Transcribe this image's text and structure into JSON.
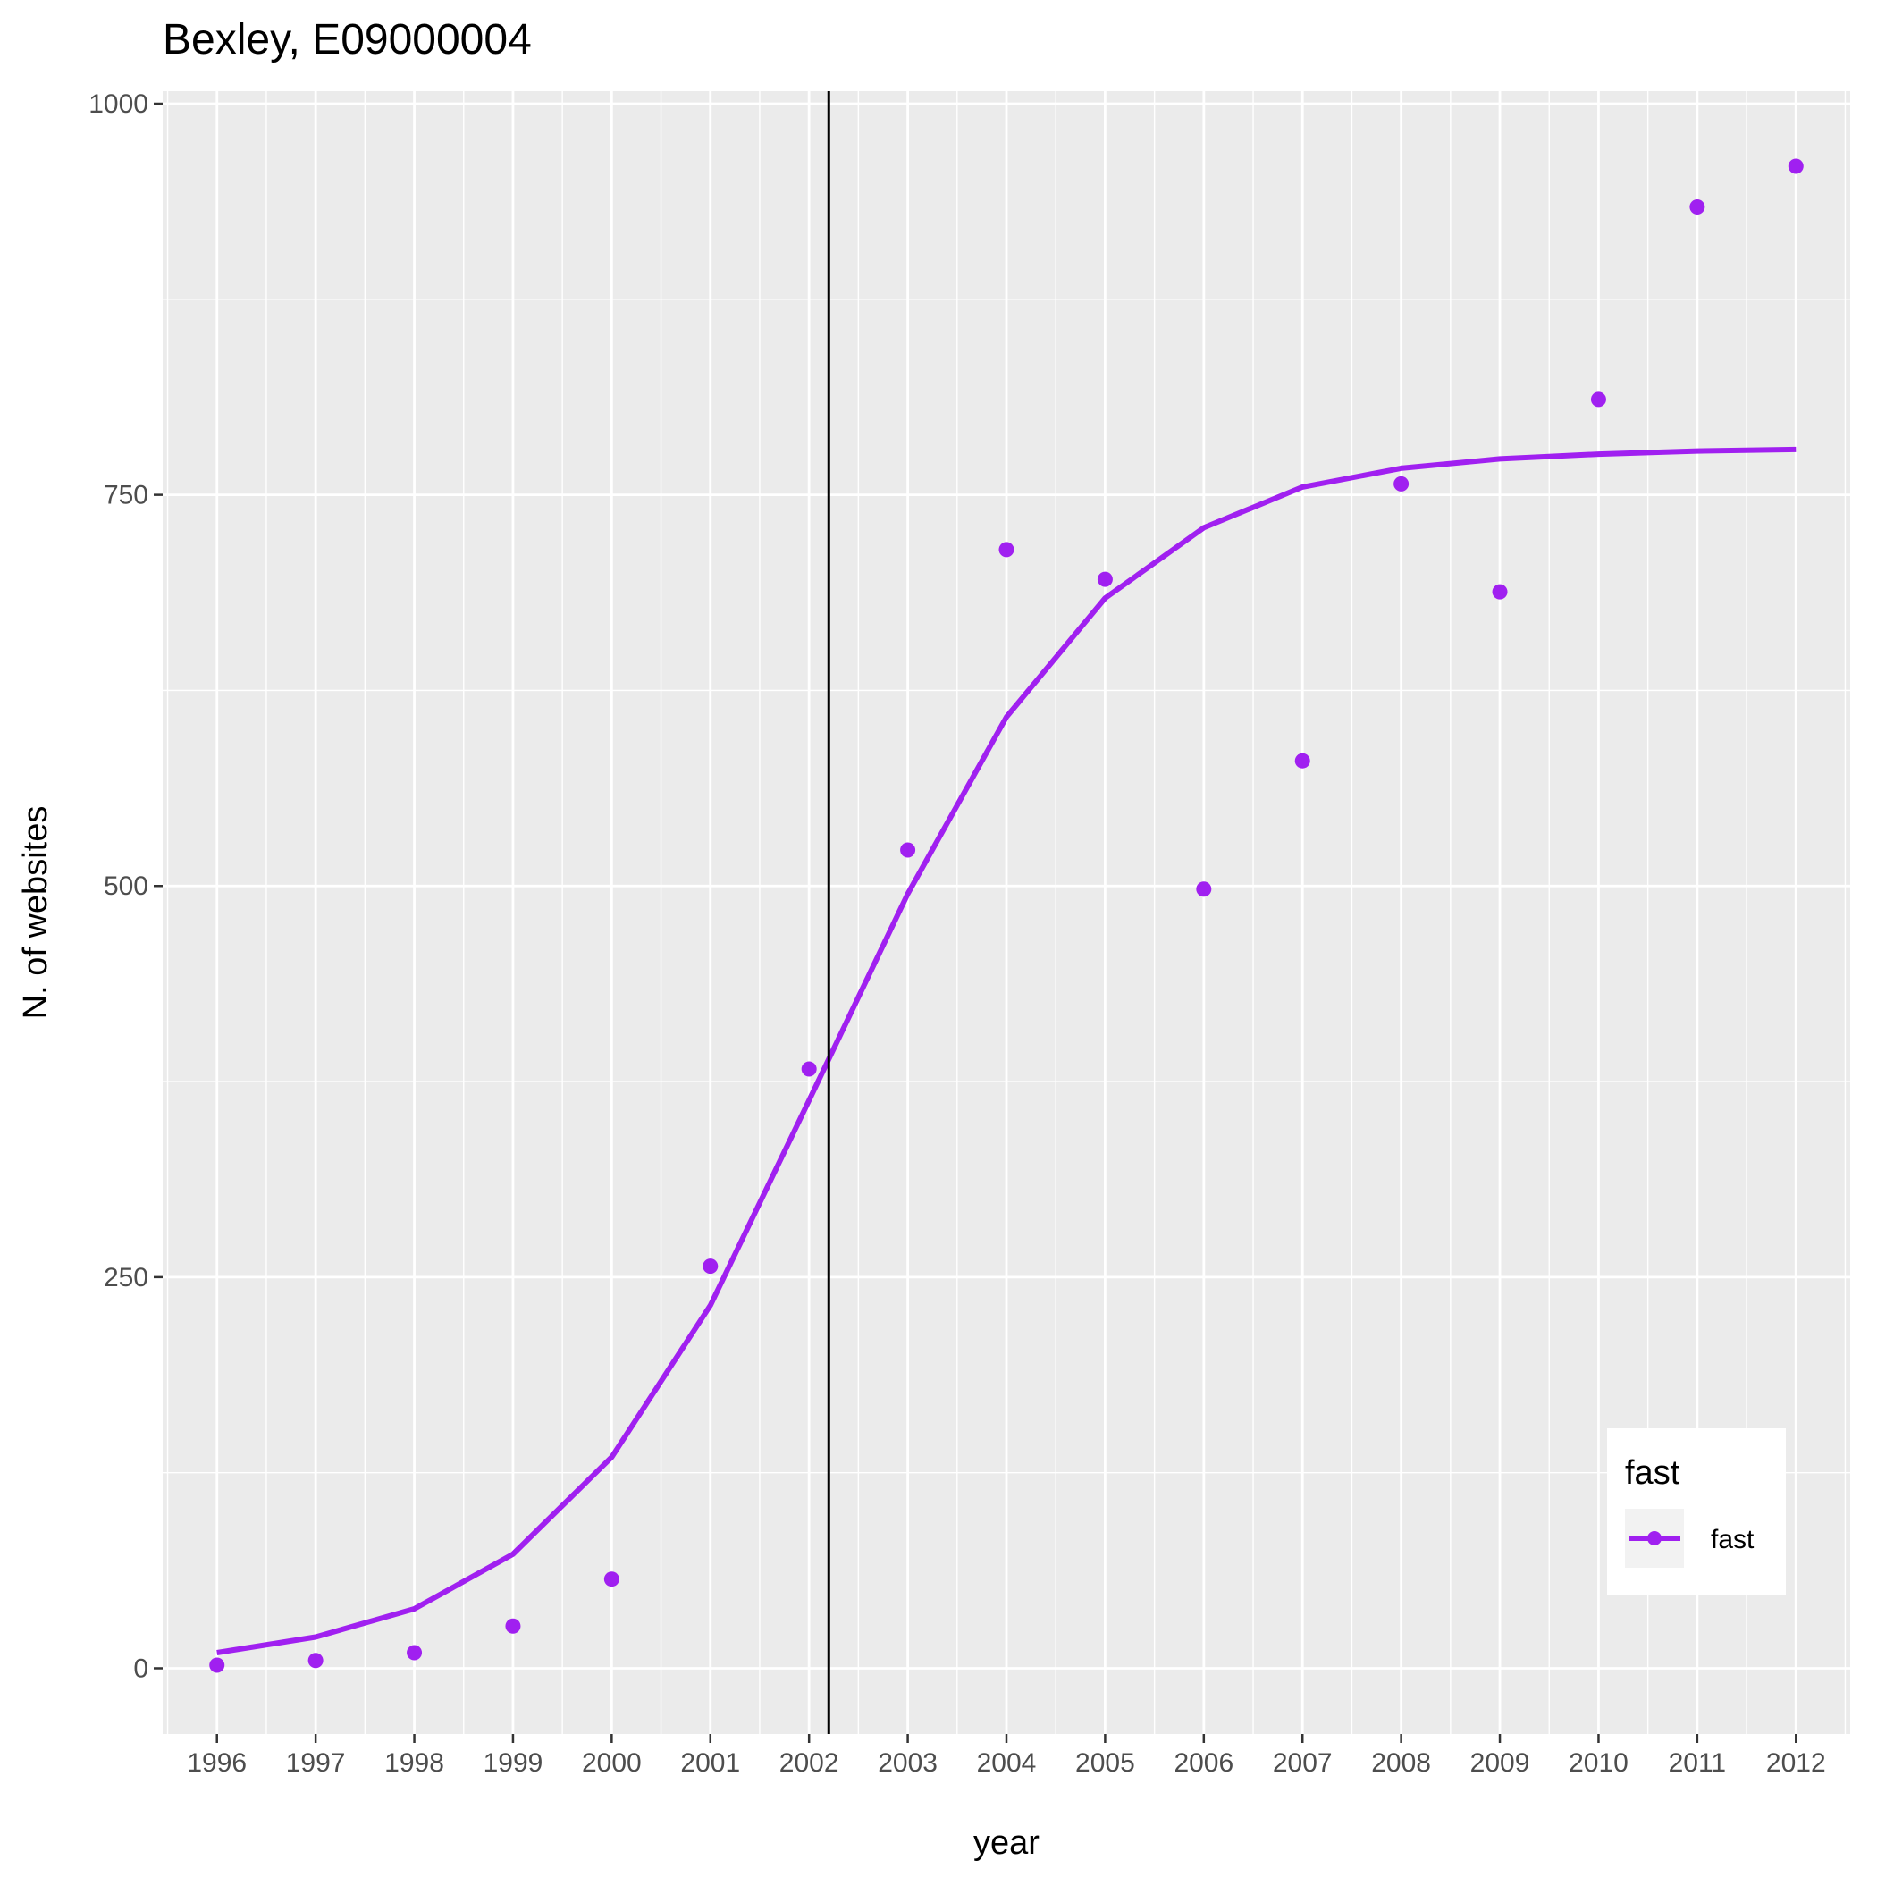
{
  "chart_data": {
    "type": "scatter",
    "title": "Bexley, E09000004",
    "xlabel": "year",
    "ylabel": "N. of websites",
    "x": [
      1996,
      1997,
      1998,
      1999,
      2000,
      2001,
      2002,
      2003,
      2004,
      2005,
      2006,
      2007,
      2008,
      2009,
      2010,
      2011,
      2012
    ],
    "x_tick_labels": [
      "1996",
      "1997",
      "1998",
      "1999",
      "2000",
      "2001",
      "2002",
      "2003",
      "2004",
      "2005",
      "2006",
      "2007",
      "2008",
      "2009",
      "2010",
      "2011",
      "2012"
    ],
    "y_ticks": [
      0,
      250,
      500,
      750,
      1000
    ],
    "y_tick_labels": [
      "0",
      "250",
      "500",
      "750",
      "1000"
    ],
    "xlim": [
      1995.45,
      2012.55
    ],
    "ylim": [
      -42,
      1008
    ],
    "grid": true,
    "series": [
      {
        "name": "fast",
        "color": "#a020f0",
        "points": [
          2,
          5,
          10,
          27,
          57,
          257,
          383,
          523,
          715,
          696,
          498,
          580,
          757,
          688,
          811,
          934,
          960
        ],
        "fit": [
          10,
          20,
          38,
          73,
          135,
          232,
          363,
          495,
          608,
          684,
          729,
          755,
          767,
          773,
          776,
          778,
          779
        ]
      }
    ],
    "vline": {
      "x": 2002.2,
      "color": "#000000"
    },
    "legend": {
      "title": "fast",
      "position": "bottom-right",
      "items": [
        {
          "label": "fast",
          "color": "#a020f0"
        }
      ]
    }
  }
}
